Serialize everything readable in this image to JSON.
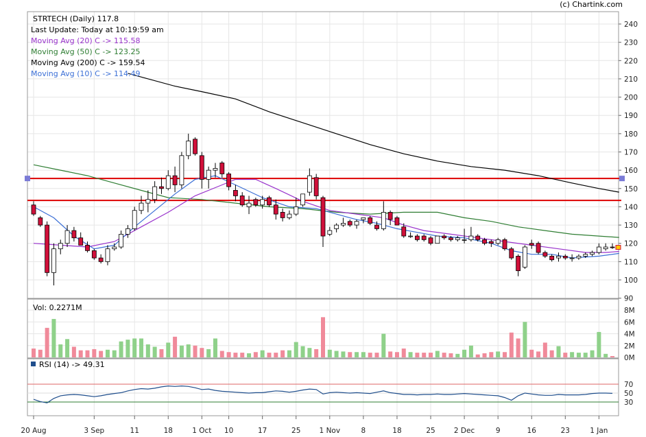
{
  "watermark": "(c) Chartink.com",
  "header": {
    "title": "STRTECH (Daily) 117.8",
    "last_update": "Last Update: Today at 10:19:59 am",
    "ma_lines": [
      {
        "text": "Moving Avg (20) C -> 115.58",
        "color": "#9933cc"
      },
      {
        "text": "Moving Avg (50) C -> 123.25",
        "color": "#2e7d32"
      },
      {
        "text": "Moving Avg (200) C -> 159.54",
        "color": "#000000"
      },
      {
        "text": "Moving Avg (10) C -> 114.49",
        "color": "#3b6fd6"
      }
    ]
  },
  "volume_panel": {
    "label": "Vol: 0.2271M",
    "ticks": [
      "0M",
      "2M",
      "4M",
      "6M",
      "8M"
    ]
  },
  "rsi_panel": {
    "label": "RSI (14) -> 49.31",
    "ticks": [
      "30",
      "50",
      "70"
    ],
    "upper": 70,
    "lower": 30
  },
  "colors": {
    "up_candle": "#ffffff",
    "down_candle": "#d0103a",
    "candle_stroke": "#000000",
    "vol_up": "#8fd18a",
    "vol_down": "#f08a9a",
    "rsi_line": "#1f4e8c",
    "support_line": "#dd0000",
    "grid": "#e6e6e6",
    "handle": "#7b7bd6"
  },
  "chart_data": {
    "type": "candlestick",
    "symbol": "STRTECH",
    "interval": "Daily",
    "last_close": 117.8,
    "ylim": [
      90,
      245
    ],
    "yticks": [
      90,
      100,
      110,
      120,
      130,
      140,
      150,
      160,
      170,
      180,
      190,
      200,
      210,
      220,
      230,
      240
    ],
    "xticks": [
      {
        "i": 0,
        "label": "20 Aug"
      },
      {
        "i": 9,
        "label": "3 Sep"
      },
      {
        "i": 15,
        "label": "11"
      },
      {
        "i": 20,
        "label": "18"
      },
      {
        "i": 25,
        "label": "1 Oct"
      },
      {
        "i": 29,
        "label": "10"
      },
      {
        "i": 34,
        "label": "17"
      },
      {
        "i": 39,
        "label": "25"
      },
      {
        "i": 44,
        "label": "1 Nov"
      },
      {
        "i": 49,
        "label": "8"
      },
      {
        "i": 54,
        "label": "18"
      },
      {
        "i": 59,
        "label": "25"
      },
      {
        "i": 64,
        "label": "2 Dec"
      },
      {
        "i": 69,
        "label": "9"
      },
      {
        "i": 74,
        "label": "16"
      },
      {
        "i": 79,
        "label": "23"
      },
      {
        "i": 84,
        "label": "1 Jan"
      }
    ],
    "horizontal_levels": [
      155.5,
      143.5
    ],
    "candles": [
      {
        "o": 141,
        "h": 143,
        "l": 135,
        "c": 136,
        "v": 1.5
      },
      {
        "o": 134,
        "h": 135,
        "l": 129,
        "c": 130,
        "v": 1.3
      },
      {
        "o": 130,
        "h": 132,
        "l": 102,
        "c": 104,
        "v": 5.0
      },
      {
        "o": 104,
        "h": 120,
        "l": 97,
        "c": 117,
        "v": 6.5
      },
      {
        "o": 117,
        "h": 122,
        "l": 114,
        "c": 120,
        "v": 2.2
      },
      {
        "o": 120,
        "h": 130,
        "l": 118,
        "c": 127,
        "v": 3.1
      },
      {
        "o": 127,
        "h": 129,
        "l": 121,
        "c": 123,
        "v": 1.8
      },
      {
        "o": 123,
        "h": 126,
        "l": 119,
        "c": 119,
        "v": 1.2
      },
      {
        "o": 119,
        "h": 121,
        "l": 115,
        "c": 116,
        "v": 1.2
      },
      {
        "o": 116,
        "h": 117,
        "l": 111,
        "c": 112,
        "v": 1.4
      },
      {
        "o": 112,
        "h": 114,
        "l": 109,
        "c": 110,
        "v": 1.1
      },
      {
        "o": 110,
        "h": 119,
        "l": 108,
        "c": 117,
        "v": 1.3
      },
      {
        "o": 117,
        "h": 120,
        "l": 116,
        "c": 118,
        "v": 1.2
      },
      {
        "o": 118,
        "h": 127,
        "l": 117,
        "c": 125,
        "v": 2.7
      },
      {
        "o": 125,
        "h": 130,
        "l": 123,
        "c": 128,
        "v": 3.0
      },
      {
        "o": 128,
        "h": 140,
        "l": 127,
        "c": 138,
        "v": 3.2
      },
      {
        "o": 138,
        "h": 146,
        "l": 136,
        "c": 142,
        "v": 3.2
      },
      {
        "o": 142,
        "h": 149,
        "l": 137,
        "c": 144,
        "v": 2.2
      },
      {
        "o": 144,
        "h": 154,
        "l": 142,
        "c": 151,
        "v": 1.8
      },
      {
        "o": 151,
        "h": 156,
        "l": 147,
        "c": 150,
        "v": 1.4
      },
      {
        "o": 150,
        "h": 160,
        "l": 149,
        "c": 157,
        "v": 2.5
      },
      {
        "o": 157,
        "h": 162,
        "l": 148,
        "c": 152,
        "v": 3.5
      },
      {
        "o": 152,
        "h": 170,
        "l": 150,
        "c": 168,
        "v": 2.0
      },
      {
        "o": 168,
        "h": 180,
        "l": 166,
        "c": 176,
        "v": 2.2
      },
      {
        "o": 177,
        "h": 178,
        "l": 168,
        "c": 169,
        "v": 2.0
      },
      {
        "o": 168,
        "h": 170,
        "l": 150,
        "c": 155,
        "v": 1.6
      },
      {
        "o": 155,
        "h": 162,
        "l": 150,
        "c": 160,
        "v": 1.4
      },
      {
        "o": 160,
        "h": 164,
        "l": 156,
        "c": 161,
        "v": 3.2
      },
      {
        "o": 164,
        "h": 165,
        "l": 156,
        "c": 158,
        "v": 1.1
      },
      {
        "o": 158,
        "h": 159,
        "l": 149,
        "c": 151,
        "v": 0.9
      },
      {
        "o": 149,
        "h": 152,
        "l": 143,
        "c": 146,
        "v": 0.8
      },
      {
        "o": 146,
        "h": 148,
        "l": 140,
        "c": 141,
        "v": 0.8
      },
      {
        "o": 140,
        "h": 146,
        "l": 136,
        "c": 142,
        "v": 0.7
      },
      {
        "o": 144,
        "h": 145,
        "l": 140,
        "c": 141,
        "v": 0.9
      },
      {
        "o": 141,
        "h": 146,
        "l": 139,
        "c": 144,
        "v": 1.2
      },
      {
        "o": 145,
        "h": 146,
        "l": 140,
        "c": 141,
        "v": 0.8
      },
      {
        "o": 141,
        "h": 144,
        "l": 133,
        "c": 136,
        "v": 0.8
      },
      {
        "o": 137,
        "h": 139,
        "l": 132,
        "c": 134,
        "v": 1.2
      },
      {
        "o": 134,
        "h": 138,
        "l": 133,
        "c": 136,
        "v": 1.2
      },
      {
        "o": 136,
        "h": 145,
        "l": 135,
        "c": 140,
        "v": 2.6
      },
      {
        "o": 141,
        "h": 147,
        "l": 140,
        "c": 147,
        "v": 1.9
      },
      {
        "o": 148,
        "h": 161,
        "l": 146,
        "c": 157,
        "v": 1.6
      },
      {
        "o": 156,
        "h": 158,
        "l": 144,
        "c": 146,
        "v": 1.4
      },
      {
        "o": 145,
        "h": 146,
        "l": 118,
        "c": 124,
        "v": 6.8
      },
      {
        "o": 125,
        "h": 129,
        "l": 124,
        "c": 127,
        "v": 1.3
      },
      {
        "o": 128,
        "h": 131,
        "l": 126,
        "c": 130,
        "v": 1.1
      },
      {
        "o": 130,
        "h": 134,
        "l": 129,
        "c": 131,
        "v": 1.0
      },
      {
        "o": 132,
        "h": 133,
        "l": 129,
        "c": 130,
        "v": 0.9
      },
      {
        "o": 130,
        "h": 133,
        "l": 128,
        "c": 132,
        "v": 0.9
      },
      {
        "o": 133,
        "h": 134,
        "l": 131,
        "c": 134,
        "v": 0.9
      },
      {
        "o": 134,
        "h": 135,
        "l": 130,
        "c": 131,
        "v": 0.8
      },
      {
        "o": 130,
        "h": 132,
        "l": 127,
        "c": 128,
        "v": 0.8
      },
      {
        "o": 128,
        "h": 143,
        "l": 127,
        "c": 137,
        "v": 4.0
      },
      {
        "o": 137,
        "h": 138,
        "l": 130,
        "c": 133,
        "v": 1.0
      },
      {
        "o": 134,
        "h": 135,
        "l": 130,
        "c": 130,
        "v": 0.9
      },
      {
        "o": 129,
        "h": 131,
        "l": 123,
        "c": 124,
        "v": 1.5
      },
      {
        "o": 124,
        "h": 126,
        "l": 123,
        "c": 124,
        "v": 0.9
      },
      {
        "o": 124,
        "h": 125,
        "l": 121,
        "c": 122,
        "v": 0.8
      },
      {
        "o": 124,
        "h": 125,
        "l": 121,
        "c": 122,
        "v": 0.8
      },
      {
        "o": 123,
        "h": 124,
        "l": 119,
        "c": 120,
        "v": 0.8
      },
      {
        "o": 120,
        "h": 124,
        "l": 120,
        "c": 124,
        "v": 1.1
      },
      {
        "o": 124,
        "h": 125,
        "l": 122,
        "c": 123,
        "v": 0.8
      },
      {
        "o": 123,
        "h": 124,
        "l": 121,
        "c": 122,
        "v": 0.7
      },
      {
        "o": 122,
        "h": 124,
        "l": 121,
        "c": 123,
        "v": 0.6
      },
      {
        "o": 122,
        "h": 128,
        "l": 120,
        "c": 122,
        "v": 1.3
      },
      {
        "o": 122,
        "h": 129,
        "l": 121,
        "c": 124,
        "v": 2.0
      },
      {
        "o": 124,
        "h": 125,
        "l": 121,
        "c": 122,
        "v": 0.5
      },
      {
        "o": 122,
        "h": 123,
        "l": 119,
        "c": 120,
        "v": 0.7
      },
      {
        "o": 121,
        "h": 122,
        "l": 118,
        "c": 120,
        "v": 0.9
      },
      {
        "o": 120,
        "h": 123,
        "l": 119,
        "c": 122,
        "v": 1.0
      },
      {
        "o": 122,
        "h": 123,
        "l": 116,
        "c": 117,
        "v": 0.9
      },
      {
        "o": 117,
        "h": 118,
        "l": 111,
        "c": 112,
        "v": 4.2
      },
      {
        "o": 113,
        "h": 114,
        "l": 102,
        "c": 105,
        "v": 3.2
      },
      {
        "o": 107,
        "h": 119,
        "l": 106,
        "c": 118,
        "v": 6.0
      },
      {
        "o": 120,
        "h": 122,
        "l": 117,
        "c": 119,
        "v": 1.3
      },
      {
        "o": 120,
        "h": 121,
        "l": 114,
        "c": 115,
        "v": 1.0
      },
      {
        "o": 115,
        "h": 116,
        "l": 112,
        "c": 113,
        "v": 2.5
      },
      {
        "o": 113,
        "h": 114,
        "l": 110,
        "c": 111,
        "v": 1.2
      },
      {
        "o": 112,
        "h": 115,
        "l": 110,
        "c": 113,
        "v": 1.9
      },
      {
        "o": 113,
        "h": 114,
        "l": 111,
        "c": 112,
        "v": 0.8
      },
      {
        "o": 112,
        "h": 114,
        "l": 110,
        "c": 112,
        "v": 0.9
      },
      {
        "o": 112,
        "h": 114,
        "l": 111,
        "c": 113,
        "v": 0.8
      },
      {
        "o": 113,
        "h": 115,
        "l": 112,
        "c": 114,
        "v": 0.8
      },
      {
        "o": 114,
        "h": 116,
        "l": 113,
        "c": 115,
        "v": 1.2
      },
      {
        "o": 115,
        "h": 120,
        "l": 114,
        "c": 118,
        "v": 4.3
      },
      {
        "o": 117,
        "h": 120,
        "l": 116,
        "c": 118,
        "v": 0.6
      },
      {
        "o": 118,
        "h": 120,
        "l": 117,
        "c": 117.8,
        "v": 0.2271
      }
    ],
    "ma200": [
      [
        0,
        null
      ],
      [
        14,
        213
      ],
      [
        21,
        206
      ],
      [
        25,
        203
      ],
      [
        30,
        199
      ],
      [
        35,
        192
      ],
      [
        40,
        186
      ],
      [
        45,
        180
      ],
      [
        50,
        174
      ],
      [
        55,
        169
      ],
      [
        60,
        165
      ],
      [
        65,
        162
      ],
      [
        70,
        160
      ],
      [
        75,
        157
      ],
      [
        80,
        153
      ],
      [
        84,
        150
      ],
      [
        87,
        148
      ]
    ],
    "ma50": [
      [
        0,
        163
      ],
      [
        4,
        160
      ],
      [
        8,
        157
      ],
      [
        12,
        153
      ],
      [
        16,
        149
      ],
      [
        20,
        145
      ],
      [
        25,
        144
      ],
      [
        30,
        142
      ],
      [
        35,
        140
      ],
      [
        40,
        139
      ],
      [
        45,
        137
      ],
      [
        50,
        136
      ],
      [
        55,
        137
      ],
      [
        60,
        137
      ],
      [
        64,
        134
      ],
      [
        68,
        132
      ],
      [
        72,
        129
      ],
      [
        76,
        127
      ],
      [
        80,
        125
      ],
      [
        84,
        124
      ],
      [
        87,
        123.25
      ]
    ],
    "ma20": [
      [
        0,
        120
      ],
      [
        4,
        119
      ],
      [
        8,
        118
      ],
      [
        12,
        121
      ],
      [
        16,
        129
      ],
      [
        20,
        137
      ],
      [
        24,
        146
      ],
      [
        28,
        152
      ],
      [
        30,
        155
      ],
      [
        33,
        155
      ],
      [
        36,
        150
      ],
      [
        40,
        143
      ],
      [
        44,
        138
      ],
      [
        48,
        136
      ],
      [
        52,
        134
      ],
      [
        55,
        130
      ],
      [
        58,
        127
      ],
      [
        62,
        125
      ],
      [
        66,
        123
      ],
      [
        70,
        121
      ],
      [
        74,
        119
      ],
      [
        78,
        117
      ],
      [
        82,
        115
      ],
      [
        85,
        115
      ],
      [
        87,
        115.58
      ]
    ],
    "ma10": [
      [
        0,
        140
      ],
      [
        3,
        134
      ],
      [
        6,
        124
      ],
      [
        9,
        117
      ],
      [
        12,
        119
      ],
      [
        15,
        129
      ],
      [
        18,
        138
      ],
      [
        21,
        147
      ],
      [
        24,
        155
      ],
      [
        27,
        157
      ],
      [
        30,
        152
      ],
      [
        34,
        145
      ],
      [
        38,
        140
      ],
      [
        42,
        139
      ],
      [
        45,
        136
      ],
      [
        48,
        133
      ],
      [
        51,
        131
      ],
      [
        54,
        128
      ],
      [
        57,
        126
      ],
      [
        60,
        124
      ],
      [
        64,
        123
      ],
      [
        68,
        120
      ],
      [
        71,
        116
      ],
      [
        74,
        114
      ],
      [
        77,
        114
      ],
      [
        80,
        112
      ],
      [
        84,
        113
      ],
      [
        87,
        114.49
      ]
    ],
    "rsi": [
      36,
      31,
      28,
      38,
      44,
      46,
      47,
      46,
      44,
      42,
      44,
      47,
      49,
      51,
      55,
      58,
      60,
      59,
      61,
      64,
      66,
      65,
      66,
      65,
      62,
      58,
      59,
      56,
      54,
      53,
      52,
      51,
      50,
      51,
      51,
      53,
      55,
      54,
      52,
      54,
      57,
      59,
      58,
      48,
      51,
      52,
      51,
      50,
      51,
      50,
      49,
      52,
      55,
      51,
      49,
      47,
      47,
      46,
      47,
      47,
      48,
      47,
      47,
      48,
      49,
      48,
      47,
      46,
      45,
      44,
      40,
      34,
      44,
      50,
      48,
      46,
      45,
      45,
      47,
      46,
      46,
      46,
      47,
      49,
      50,
      50,
      49.31
    ],
    "volume_ylim": [
      0,
      9
    ],
    "rsi_ylim": [
      0,
      100
    ]
  }
}
